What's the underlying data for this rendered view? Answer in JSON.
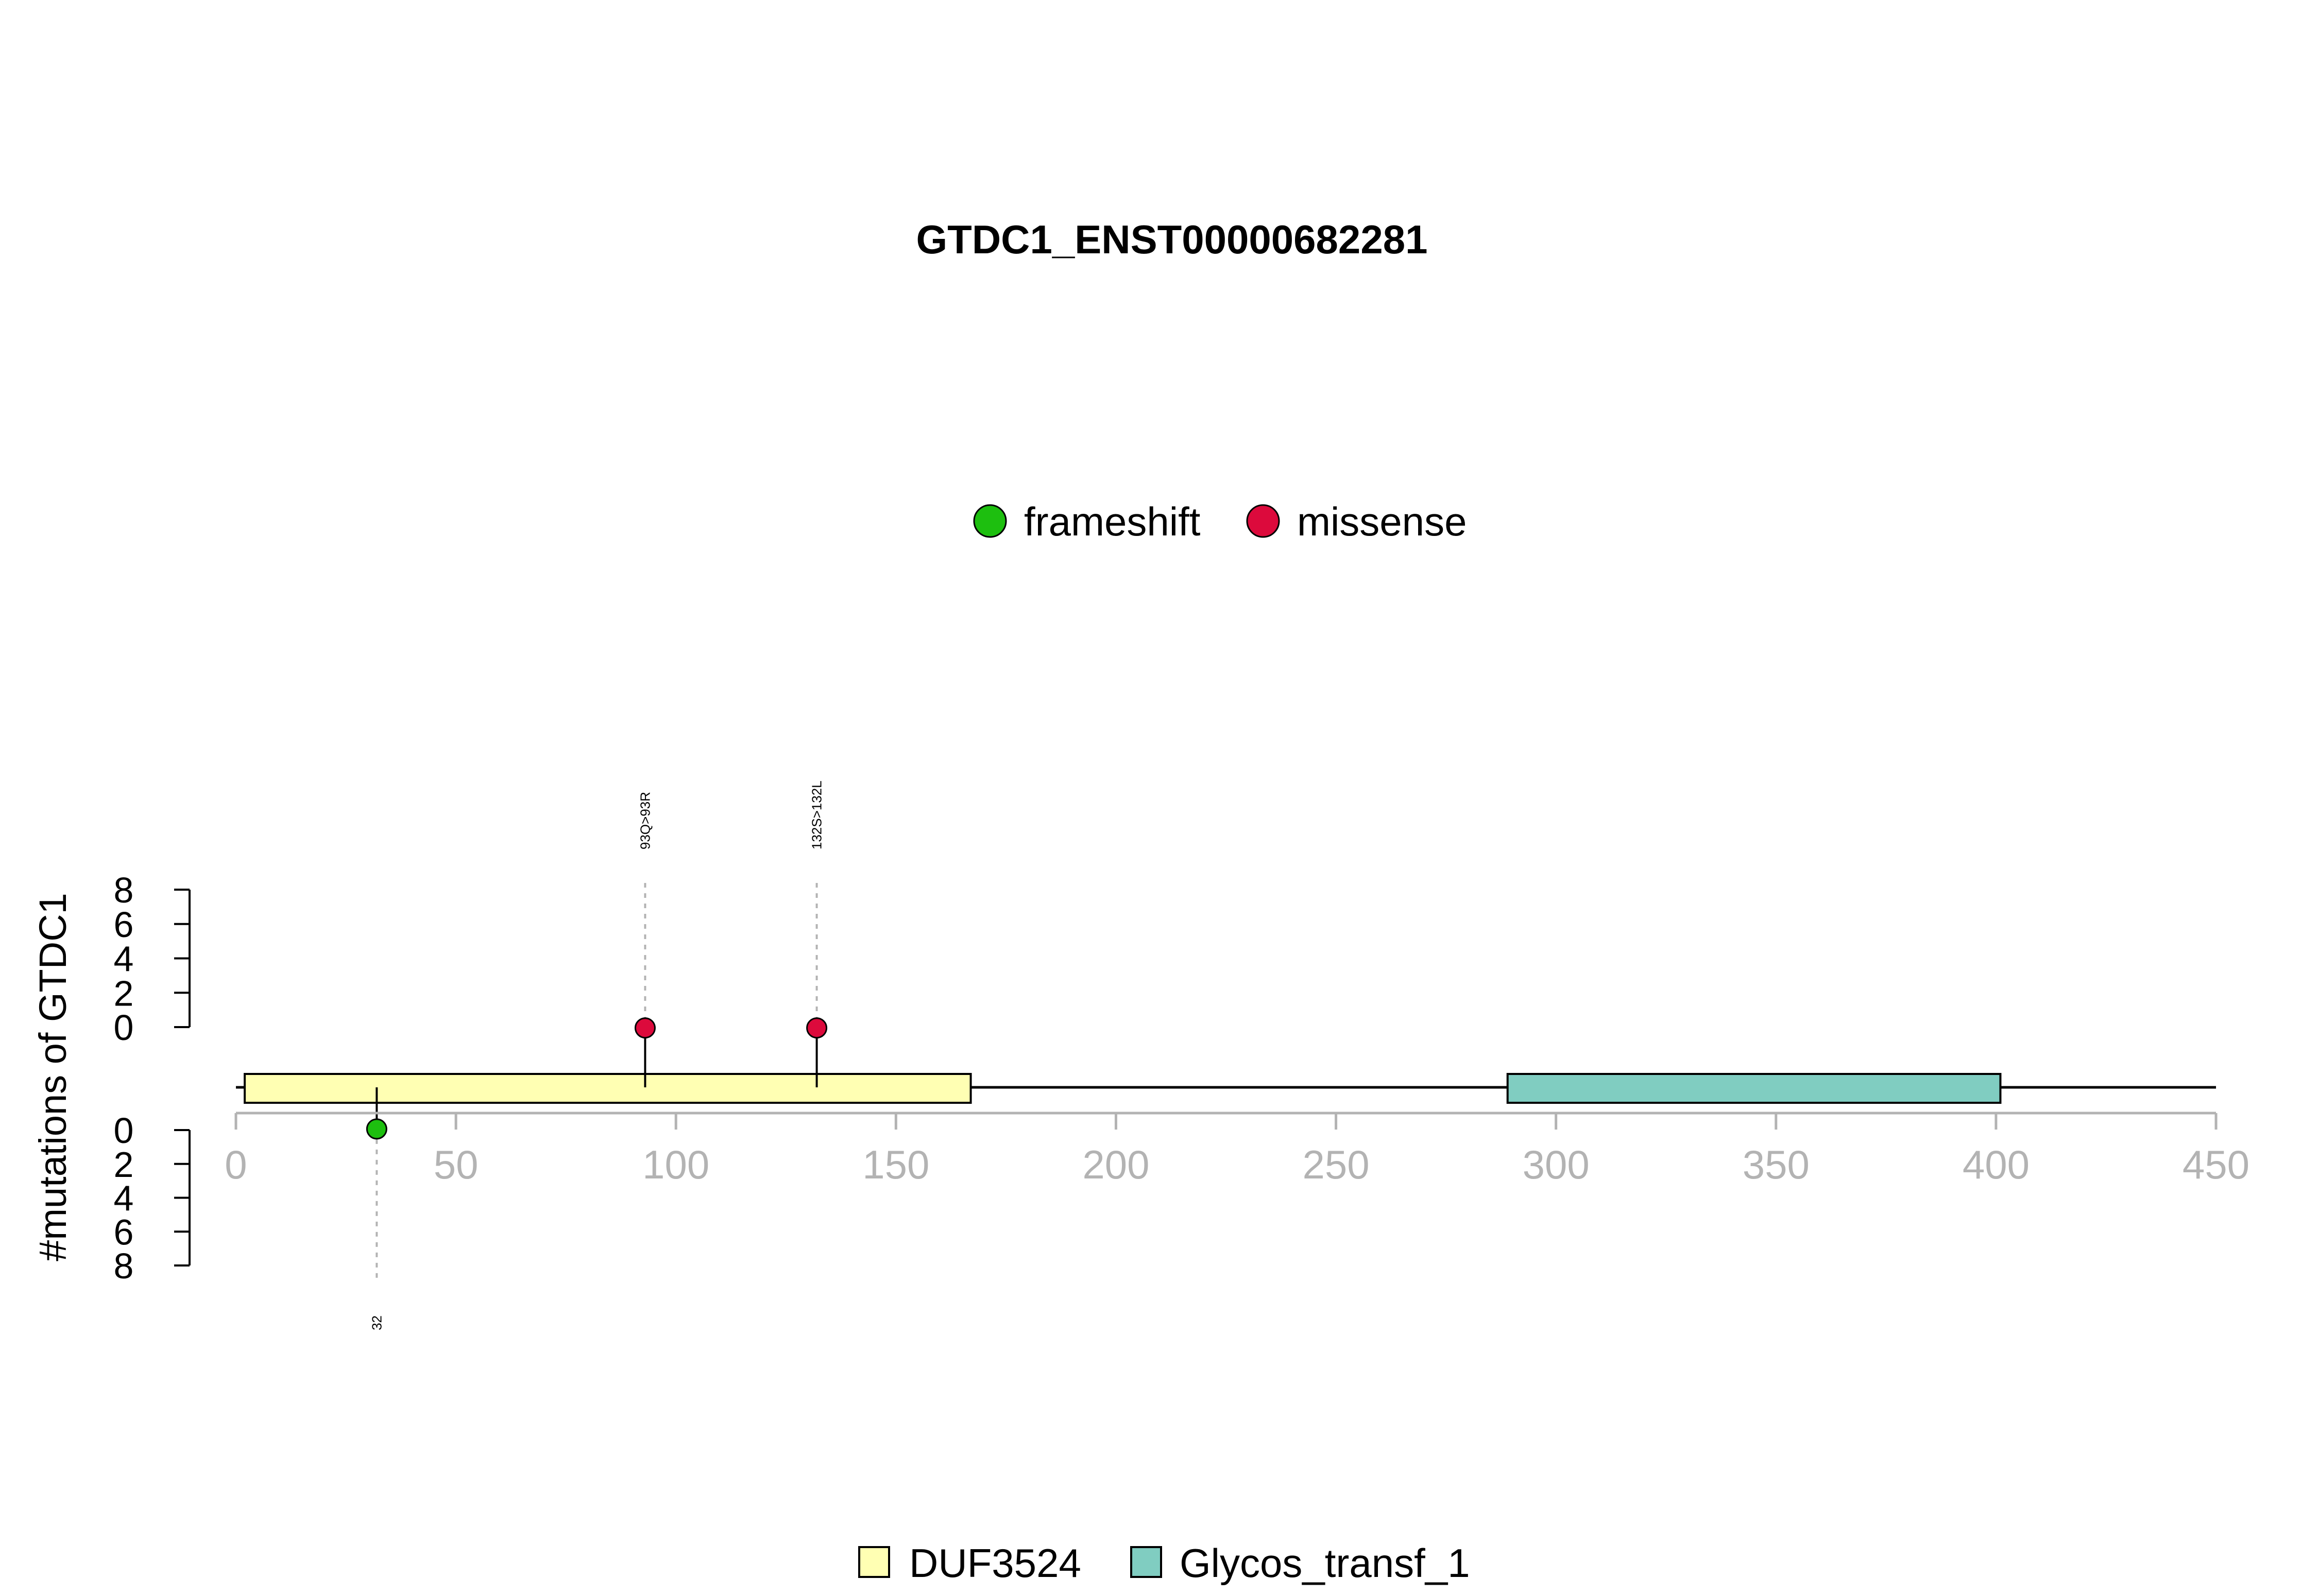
{
  "chart_data": {
    "type": "lollipop",
    "title": "GTDC1_ENST00000682281",
    "ylabel": "#mutations of GTDC1",
    "xlim": [
      0,
      450
    ],
    "x_ticks": [
      0,
      50,
      100,
      150,
      200,
      250,
      300,
      350,
      400,
      450
    ],
    "ylim_top": [
      0,
      8
    ],
    "ylim_bottom": [
      0,
      8
    ],
    "y_ticks_top": [
      0,
      2,
      4,
      6,
      8
    ],
    "y_ticks_bottom": [
      0,
      2,
      4,
      6,
      8
    ],
    "mutation_legend": [
      {
        "name": "frameshift",
        "color": "#1dbf0f"
      },
      {
        "name": "missense",
        "color": "#dc0a3c"
      }
    ],
    "domain_legend": [
      {
        "name": "DUF3524",
        "color": "#ffffb3"
      },
      {
        "name": "Glycos_transf_1",
        "color": "#80cdc1"
      }
    ],
    "domains": [
      {
        "name": "DUF3524",
        "start": 2,
        "end": 167,
        "color": "#ffffb3"
      },
      {
        "name": "Glycos_transf_1",
        "start": 289,
        "end": 401,
        "color": "#80cdc1"
      }
    ],
    "mutations": [
      {
        "position": 32,
        "count": 1,
        "type": "frameshift",
        "side": "bottom",
        "label": "32"
      },
      {
        "position": 93,
        "count": 1,
        "type": "missense",
        "side": "top",
        "label": "93Q>93R"
      },
      {
        "position": 132,
        "count": 1,
        "type": "missense",
        "side": "top",
        "label": "132S>132L"
      }
    ]
  }
}
